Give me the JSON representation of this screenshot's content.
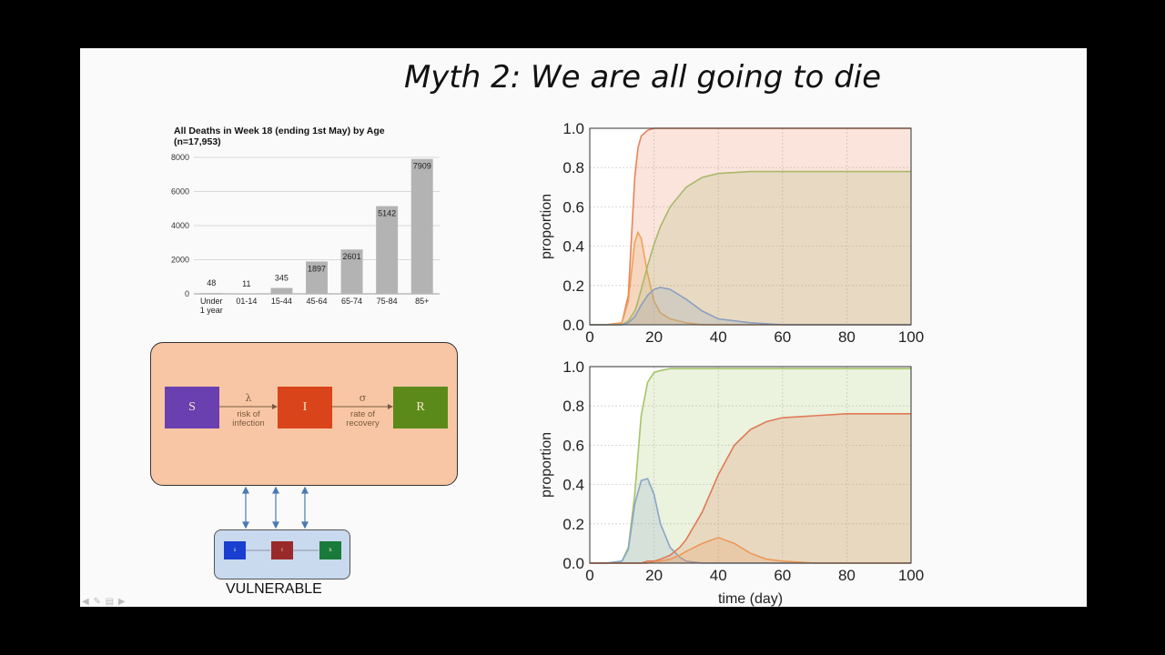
{
  "slide": {
    "title": "Myth 2: We are all going to die"
  },
  "bar_chart_title": [
    "All Deaths in Week 18 (ending 1st May)  by Age",
    "(n=17,953)"
  ],
  "chart_data": [
    {
      "type": "bar",
      "title": "All Deaths in Week 18 (ending 1st May)  by Age (n=17,953)",
      "categories": [
        "Under 1 year",
        "01-14",
        "15-44",
        "45-64",
        "65-74",
        "75-84",
        "85+"
      ],
      "category_lines": [
        [
          "Under",
          "1 year"
        ],
        [
          "01-14"
        ],
        [
          "15-44"
        ],
        [
          "45-64"
        ],
        [
          "65-74"
        ],
        [
          "75-84"
        ],
        [
          "85+"
        ]
      ],
      "values": [
        48,
        11,
        345,
        1897,
        2601,
        5142,
        7909
      ],
      "ylim": [
        0,
        8000
      ],
      "yticks": [
        0,
        2000,
        4000,
        6000,
        8000
      ],
      "grid": true,
      "color": "#b3b3b3"
    },
    {
      "type": "area",
      "xlabel": "",
      "ylabel": "proportion",
      "xlim": [
        0,
        100
      ],
      "ylim": [
        0,
        1.0
      ],
      "xticks": [
        0,
        20,
        40,
        60,
        80,
        100
      ],
      "yticks": [
        "0.0",
        "0.2",
        "0.4",
        "0.6",
        "0.8",
        "1.0"
      ],
      "x": [
        0,
        5,
        10,
        12,
        14,
        15,
        16,
        18,
        20,
        22,
        25,
        30,
        35,
        40,
        50,
        60,
        80,
        100
      ],
      "series": [
        {
          "color": "#e8835a",
          "values": [
            0,
            0,
            0.01,
            0.15,
            0.75,
            0.9,
            0.96,
            0.99,
            1.0,
            1.0,
            1.0,
            1.0,
            1.0,
            1.0,
            1.0,
            1.0,
            1.0,
            1.0
          ]
        },
        {
          "color": "#efa25a",
          "values": [
            0,
            0,
            0.01,
            0.12,
            0.42,
            0.47,
            0.44,
            0.26,
            0.12,
            0.06,
            0.03,
            0.01,
            0,
            0,
            0,
            0,
            0,
            0
          ]
        },
        {
          "color": "#a8b86a",
          "values": [
            0,
            0,
            0,
            0.02,
            0.07,
            0.12,
            0.18,
            0.3,
            0.41,
            0.5,
            0.6,
            0.7,
            0.75,
            0.77,
            0.78,
            0.78,
            0.78,
            0.78
          ]
        },
        {
          "color": "#8a9fc0",
          "values": [
            0,
            0,
            0,
            0.01,
            0.04,
            0.07,
            0.1,
            0.15,
            0.18,
            0.19,
            0.18,
            0.13,
            0.07,
            0.03,
            0.01,
            0,
            0,
            0
          ]
        }
      ]
    },
    {
      "type": "area",
      "xlabel": "time (day)",
      "ylabel": "proportion",
      "xlim": [
        0,
        100
      ],
      "ylim": [
        0,
        1.0
      ],
      "xticks": [
        0,
        20,
        40,
        60,
        80,
        100
      ],
      "yticks": [
        "0.0",
        "0.2",
        "0.4",
        "0.6",
        "0.8",
        "1.0"
      ],
      "x": [
        0,
        5,
        10,
        12,
        14,
        16,
        18,
        20,
        22,
        25,
        28,
        30,
        35,
        40,
        45,
        50,
        55,
        60,
        70,
        80,
        100
      ],
      "series": [
        {
          "color": "#a5c46a",
          "values": [
            0,
            0,
            0.01,
            0.08,
            0.35,
            0.75,
            0.92,
            0.97,
            0.98,
            0.99,
            0.99,
            0.99,
            0.99,
            0.99,
            0.99,
            0.99,
            0.99,
            0.99,
            0.99,
            0.99,
            0.99
          ]
        },
        {
          "color": "#8aa5c8",
          "values": [
            0,
            0,
            0.01,
            0.07,
            0.3,
            0.42,
            0.43,
            0.35,
            0.2,
            0.08,
            0.03,
            0.01,
            0,
            0,
            0,
            0,
            0,
            0,
            0,
            0,
            0
          ]
        },
        {
          "color": "#efa25a",
          "values": [
            0,
            0,
            0,
            0,
            0,
            0,
            0,
            0.01,
            0.01,
            0.02,
            0.04,
            0.06,
            0.1,
            0.13,
            0.1,
            0.05,
            0.02,
            0.01,
            0,
            0,
            0
          ]
        },
        {
          "color": "#e07a55",
          "values": [
            0,
            0,
            0,
            0,
            0,
            0,
            0.01,
            0.01,
            0.02,
            0.04,
            0.08,
            0.12,
            0.26,
            0.45,
            0.6,
            0.68,
            0.72,
            0.74,
            0.75,
            0.76,
            0.76
          ]
        }
      ]
    }
  ],
  "sir_main": {
    "boxes": [
      "S",
      "I",
      "R"
    ],
    "colors": [
      "#6a3fb0",
      "#d9441a",
      "#5c8a1a"
    ],
    "arrow1": {
      "symbol": "λ",
      "label": [
        "risk of",
        "infection"
      ]
    },
    "arrow2": {
      "symbol": "σ",
      "label": [
        "rate of",
        "recovery"
      ]
    },
    "panel_color": "#f8c6a4"
  },
  "sir_vulnerable": {
    "boxes": [
      "S",
      "I",
      "R"
    ],
    "colors": [
      "#1a3fd0",
      "#9a2a2a",
      "#1a7a3a"
    ],
    "panel_color": "#c9d9ee",
    "label": "VULNERABLE"
  },
  "nav": {
    "icons": [
      "back-arrow-icon",
      "pen-icon",
      "menu-icon",
      "forward-arrow-icon"
    ],
    "text": "◀ ✎ ▤ ▶"
  }
}
